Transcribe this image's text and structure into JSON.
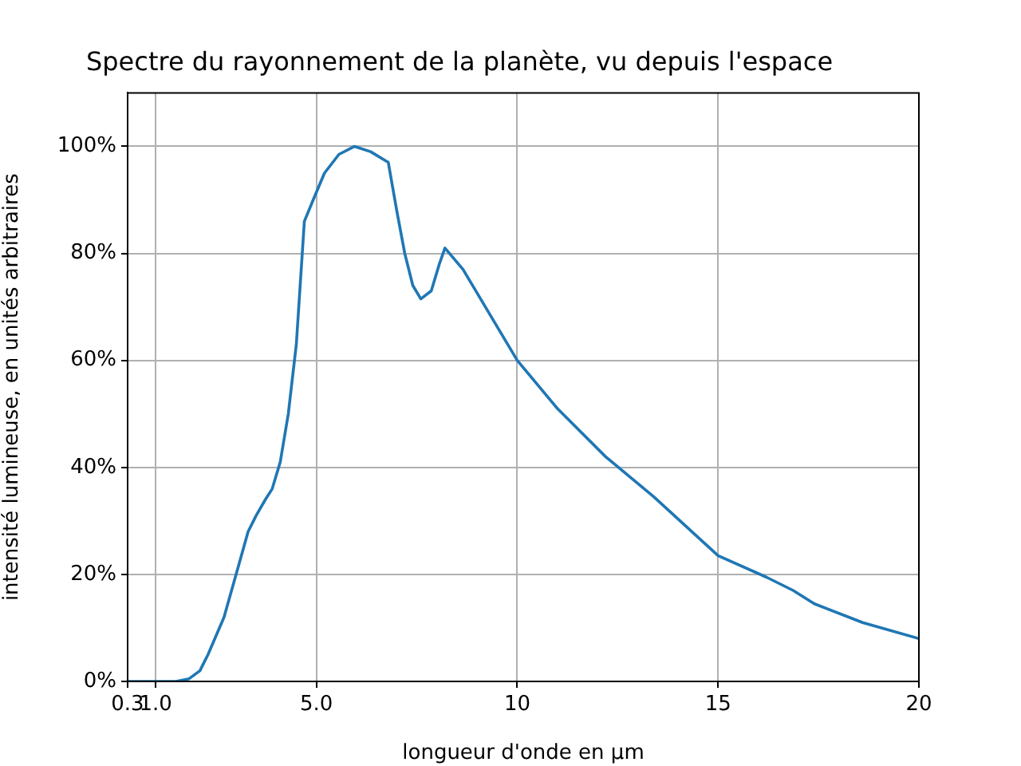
{
  "chart_data": {
    "type": "line",
    "title": "Spectre du rayonnement de la planète, vu depuis l'espace",
    "xlabel": "longueur d'onde en µm",
    "ylabel": "intensité lumineuse, en unités arbitraires",
    "x": [
      0.3,
      1.5,
      1.83,
      2.1,
      2.3,
      2.7,
      3.0,
      3.3,
      3.5,
      3.73,
      3.9,
      4.1,
      4.3,
      4.5,
      4.7,
      4.92,
      5.2,
      5.56,
      5.95,
      6.35,
      6.79,
      7.0,
      7.2,
      7.4,
      7.6,
      7.86,
      8.06,
      8.2,
      8.65,
      10,
      11,
      12.2,
      13.4,
      15,
      16.2,
      16.87,
      17.4,
      18.6,
      20
    ],
    "series": [
      {
        "color": "#1f77b4",
        "values": [
          0,
          0,
          0.5,
          2,
          5,
          12,
          20,
          28,
          31,
          34,
          36,
          41,
          50,
          63,
          86,
          90,
          95,
          98.5,
          100,
          99,
          97,
          88,
          80,
          74,
          71.5,
          73,
          78,
          81,
          77,
          60,
          51,
          42,
          34.5,
          23.5,
          19.5,
          17,
          14.5,
          11,
          8
        ]
      }
    ],
    "xlim": [
      0.3,
      20
    ],
    "xticks": [
      {
        "value": 0.3,
        "label": "0.3"
      },
      {
        "value": 1,
        "label": "1.0"
      },
      {
        "value": 5,
        "label": "5.0"
      },
      10,
      15,
      20
    ],
    "ylim": [
      0,
      110
    ],
    "yticks": [
      {
        "value": 0,
        "label": "0%"
      },
      {
        "value": 20,
        "label": "20%"
      },
      {
        "value": 40,
        "label": "40%"
      },
      {
        "value": 60,
        "label": "60%"
      },
      {
        "value": 80,
        "label": "80%"
      },
      {
        "value": 100,
        "label": "100%"
      }
    ],
    "grid": true,
    "marker": "none",
    "line_style": "solid"
  }
}
